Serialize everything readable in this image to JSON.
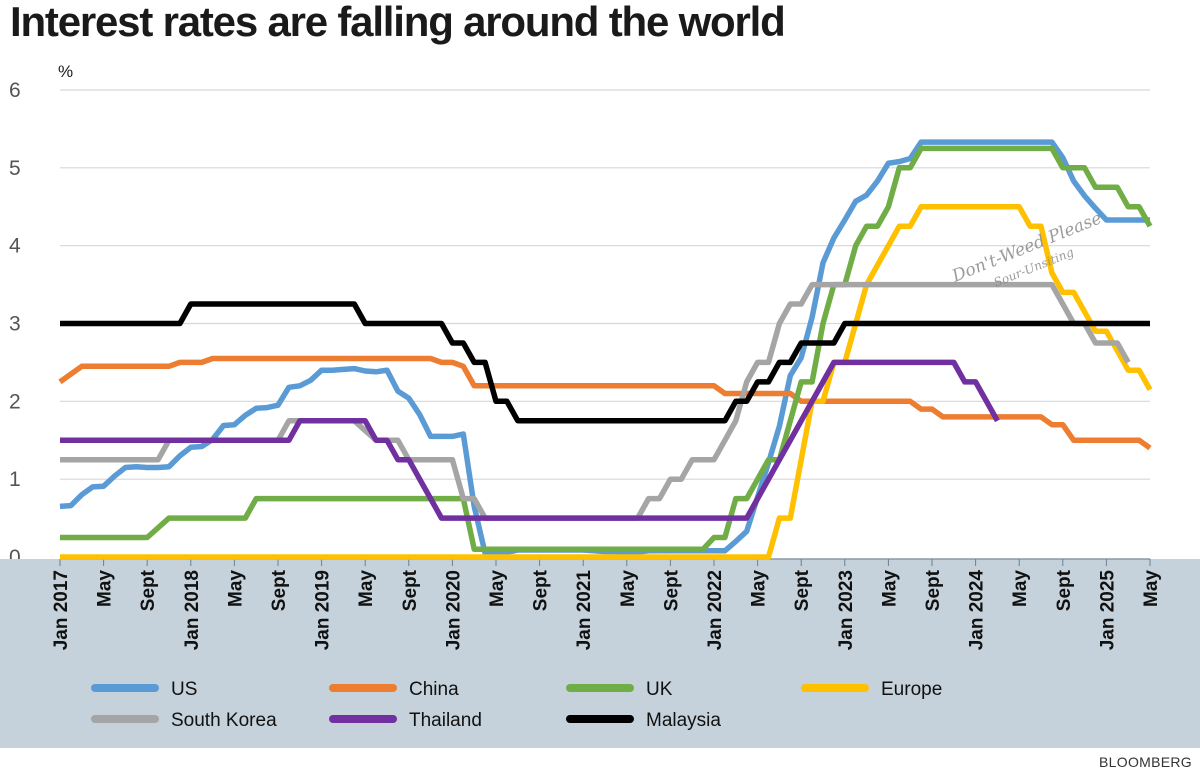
{
  "chart_data": {
    "type": "line",
    "title": "Interest rates are falling around the world",
    "ylabel": "%",
    "ylim": [
      0,
      6
    ],
    "yticks": [
      "0",
      "1",
      "2",
      "3",
      "4",
      "5",
      "6"
    ],
    "grid": true,
    "x_start": "Jan 2017",
    "x_months_span": 100,
    "xticks": [
      {
        "month": 0,
        "label": "Jan 2017"
      },
      {
        "month": 4,
        "label": "May"
      },
      {
        "month": 8,
        "label": "Sept"
      },
      {
        "month": 12,
        "label": "Jan 2018"
      },
      {
        "month": 16,
        "label": "May"
      },
      {
        "month": 20,
        "label": "Sept"
      },
      {
        "month": 24,
        "label": "Jan 2019"
      },
      {
        "month": 28,
        "label": "May"
      },
      {
        "month": 32,
        "label": "Sept"
      },
      {
        "month": 36,
        "label": "Jan 2020"
      },
      {
        "month": 40,
        "label": "May"
      },
      {
        "month": 44,
        "label": "Sept"
      },
      {
        "month": 48,
        "label": "Jan 2021"
      },
      {
        "month": 52,
        "label": "May"
      },
      {
        "month": 56,
        "label": "Sept"
      },
      {
        "month": 60,
        "label": "Jan 2022"
      },
      {
        "month": 64,
        "label": "May"
      },
      {
        "month": 68,
        "label": "Sept"
      },
      {
        "month": 72,
        "label": "Jan 2023"
      },
      {
        "month": 76,
        "label": "May"
      },
      {
        "month": 80,
        "label": "Sept"
      },
      {
        "month": 84,
        "label": "Jan 2024"
      },
      {
        "month": 88,
        "label": "May"
      },
      {
        "month": 92,
        "label": "Sept"
      },
      {
        "month": 96,
        "label": "Jan 2025"
      },
      {
        "month": 100,
        "label": "May"
      }
    ],
    "legend_position": "bottom",
    "series": [
      {
        "name": "US",
        "color": "#5B9BD5",
        "points": [
          [
            0,
            0.65
          ],
          [
            1,
            0.66
          ],
          [
            2,
            0.8
          ],
          [
            3,
            0.9
          ],
          [
            4,
            0.91
          ],
          [
            5,
            1.04
          ],
          [
            6,
            1.15
          ],
          [
            7,
            1.16
          ],
          [
            8,
            1.15
          ],
          [
            9,
            1.15
          ],
          [
            10,
            1.16
          ],
          [
            11,
            1.3
          ],
          [
            12,
            1.41
          ],
          [
            13,
            1.42
          ],
          [
            14,
            1.51
          ],
          [
            15,
            1.69
          ],
          [
            16,
            1.7
          ],
          [
            17,
            1.82
          ],
          [
            18,
            1.91
          ],
          [
            19,
            1.92
          ],
          [
            20,
            1.95
          ],
          [
            21,
            2.18
          ],
          [
            22,
            2.2
          ],
          [
            23,
            2.27
          ],
          [
            24,
            2.4
          ],
          [
            25,
            2.4
          ],
          [
            26,
            2.41
          ],
          [
            27,
            2.42
          ],
          [
            28,
            2.39
          ],
          [
            29,
            2.38
          ],
          [
            30,
            2.4
          ],
          [
            31,
            2.13
          ],
          [
            32,
            2.04
          ],
          [
            33,
            1.83
          ],
          [
            34,
            1.55
          ],
          [
            35,
            1.55
          ],
          [
            36,
            1.55
          ],
          [
            37,
            1.58
          ],
          [
            38,
            0.65
          ],
          [
            39,
            0.05
          ],
          [
            40,
            0.05
          ],
          [
            41,
            0.06
          ],
          [
            42,
            0.09
          ],
          [
            43,
            0.09
          ],
          [
            44,
            0.09
          ],
          [
            45,
            0.09
          ],
          [
            46,
            0.09
          ],
          [
            47,
            0.09
          ],
          [
            48,
            0.09
          ],
          [
            49,
            0.08
          ],
          [
            50,
            0.07
          ],
          [
            51,
            0.07
          ],
          [
            52,
            0.06
          ],
          [
            53,
            0.06
          ],
          [
            54,
            0.08
          ],
          [
            55,
            0.08
          ],
          [
            56,
            0.08
          ],
          [
            57,
            0.08
          ],
          [
            58,
            0.08
          ],
          [
            59,
            0.08
          ],
          [
            60,
            0.08
          ],
          [
            61,
            0.08
          ],
          [
            62,
            0.2
          ],
          [
            63,
            0.33
          ],
          [
            64,
            0.77
          ],
          [
            65,
            1.21
          ],
          [
            66,
            1.68
          ],
          [
            67,
            2.33
          ],
          [
            68,
            2.56
          ],
          [
            69,
            3.08
          ],
          [
            70,
            3.78
          ],
          [
            71,
            4.1
          ],
          [
            72,
            4.33
          ],
          [
            73,
            4.57
          ],
          [
            74,
            4.65
          ],
          [
            75,
            4.83
          ],
          [
            76,
            5.06
          ],
          [
            77,
            5.08
          ],
          [
            78,
            5.12
          ],
          [
            79,
            5.33
          ],
          [
            80,
            5.33
          ],
          [
            81,
            5.33
          ],
          [
            82,
            5.33
          ],
          [
            83,
            5.33
          ],
          [
            84,
            5.33
          ],
          [
            85,
            5.33
          ],
          [
            86,
            5.33
          ],
          [
            87,
            5.33
          ],
          [
            88,
            5.33
          ],
          [
            89,
            5.33
          ],
          [
            90,
            5.33
          ],
          [
            91,
            5.33
          ],
          [
            92,
            5.13
          ],
          [
            93,
            4.83
          ],
          [
            94,
            4.64
          ],
          [
            95,
            4.48
          ],
          [
            96,
            4.33
          ],
          [
            97,
            4.33
          ],
          [
            98,
            4.33
          ],
          [
            99,
            4.33
          ],
          [
            100,
            4.33
          ]
        ]
      },
      {
        "name": "China",
        "color": "#ED7D31",
        "points": [
          [
            0,
            2.25
          ],
          [
            2,
            2.45
          ],
          [
            9,
            2.45
          ],
          [
            10,
            2.45
          ],
          [
            11,
            2.5
          ],
          [
            13,
            2.5
          ],
          [
            14,
            2.55
          ],
          [
            34,
            2.55
          ],
          [
            35,
            2.5
          ],
          [
            36,
            2.5
          ],
          [
            37,
            2.45
          ],
          [
            38,
            2.2
          ],
          [
            59,
            2.2
          ],
          [
            60,
            2.2
          ],
          [
            61,
            2.1
          ],
          [
            67,
            2.1
          ],
          [
            68,
            2.0
          ],
          [
            78,
            2.0
          ],
          [
            79,
            1.9
          ],
          [
            80,
            1.9
          ],
          [
            81,
            1.8
          ],
          [
            89,
            1.8
          ],
          [
            90,
            1.8
          ],
          [
            91,
            1.7
          ],
          [
            92,
            1.7
          ],
          [
            93,
            1.5
          ],
          [
            99,
            1.5
          ],
          [
            100,
            1.4
          ]
        ]
      },
      {
        "name": "UK",
        "color": "#70AD47",
        "points": [
          [
            0,
            0.25
          ],
          [
            8,
            0.25
          ],
          [
            10,
            0.5
          ],
          [
            17,
            0.5
          ],
          [
            18,
            0.75
          ],
          [
            37,
            0.75
          ],
          [
            38,
            0.1
          ],
          [
            58,
            0.1
          ],
          [
            59,
            0.1
          ],
          [
            60,
            0.25
          ],
          [
            61,
            0.25
          ],
          [
            62,
            0.75
          ],
          [
            63,
            0.75
          ],
          [
            64,
            1.0
          ],
          [
            65,
            1.25
          ],
          [
            66,
            1.25
          ],
          [
            67,
            1.75
          ],
          [
            68,
            2.25
          ],
          [
            69,
            2.25
          ],
          [
            70,
            3.0
          ],
          [
            71,
            3.5
          ],
          [
            72,
            3.5
          ],
          [
            73,
            4.0
          ],
          [
            74,
            4.25
          ],
          [
            75,
            4.25
          ],
          [
            76,
            4.5
          ],
          [
            77,
            5.0
          ],
          [
            78,
            5.0
          ],
          [
            79,
            5.25
          ],
          [
            91,
            5.25
          ],
          [
            92,
            5.0
          ],
          [
            93,
            5.0
          ],
          [
            94,
            5.0
          ],
          [
            95,
            4.75
          ],
          [
            96,
            4.75
          ],
          [
            97,
            4.75
          ],
          [
            98,
            4.5
          ],
          [
            99,
            4.5
          ],
          [
            100,
            4.25
          ]
        ]
      },
      {
        "name": "Europe",
        "color": "#FFC000",
        "points": [
          [
            0,
            0
          ],
          [
            65,
            0
          ],
          [
            66,
            0.5
          ],
          [
            67,
            0.5
          ],
          [
            68,
            1.25
          ],
          [
            69,
            2.0
          ],
          [
            70,
            2.0
          ],
          [
            71,
            2.5
          ],
          [
            72,
            2.5
          ],
          [
            73,
            3.0
          ],
          [
            74,
            3.5
          ],
          [
            75,
            3.75
          ],
          [
            76,
            4.0
          ],
          [
            77,
            4.25
          ],
          [
            78,
            4.25
          ],
          [
            79,
            4.5
          ],
          [
            88,
            4.5
          ],
          [
            89,
            4.25
          ],
          [
            90,
            4.25
          ],
          [
            91,
            3.65
          ],
          [
            92,
            3.4
          ],
          [
            93,
            3.4
          ],
          [
            94,
            3.15
          ],
          [
            95,
            2.9
          ],
          [
            96,
            2.9
          ],
          [
            97,
            2.65
          ],
          [
            98,
            2.4
          ],
          [
            99,
            2.4
          ],
          [
            100,
            2.15
          ]
        ]
      },
      {
        "name": "South Korea",
        "color": "#A5A5A5",
        "points": [
          [
            0,
            1.25
          ],
          [
            9,
            1.25
          ],
          [
            10,
            1.5
          ],
          [
            20,
            1.5
          ],
          [
            21,
            1.75
          ],
          [
            27,
            1.75
          ],
          [
            29,
            1.5
          ],
          [
            31,
            1.5
          ],
          [
            32,
            1.25
          ],
          [
            36,
            1.25
          ],
          [
            37,
            0.75
          ],
          [
            38,
            0.75
          ],
          [
            39,
            0.5
          ],
          [
            53,
            0.5
          ],
          [
            54,
            0.75
          ],
          [
            55,
            0.75
          ],
          [
            56,
            1.0
          ],
          [
            57,
            1.0
          ],
          [
            58,
            1.25
          ],
          [
            59,
            1.25
          ],
          [
            60,
            1.25
          ],
          [
            61,
            1.5
          ],
          [
            62,
            1.75
          ],
          [
            63,
            2.25
          ],
          [
            64,
            2.5
          ],
          [
            65,
            2.5
          ],
          [
            66,
            3.0
          ],
          [
            67,
            3.25
          ],
          [
            68,
            3.25
          ],
          [
            69,
            3.5
          ],
          [
            91,
            3.5
          ],
          [
            92,
            3.25
          ],
          [
            93,
            3.0
          ],
          [
            94,
            3.0
          ],
          [
            95,
            2.75
          ],
          [
            96,
            2.75
          ],
          [
            97,
            2.75
          ],
          [
            98,
            2.5
          ]
        ]
      },
      {
        "name": "Thailand",
        "color": "#7030A0",
        "points": [
          [
            0,
            1.5
          ],
          [
            21,
            1.5
          ],
          [
            22,
            1.75
          ],
          [
            28,
            1.75
          ],
          [
            29,
            1.5
          ],
          [
            30,
            1.5
          ],
          [
            31,
            1.25
          ],
          [
            32,
            1.25
          ],
          [
            33,
            1.0
          ],
          [
            34,
            0.75
          ],
          [
            35,
            0.5
          ],
          [
            63,
            0.5
          ],
          [
            64,
            0.75
          ],
          [
            65,
            1.0
          ],
          [
            66,
            1.25
          ],
          [
            67,
            1.5
          ],
          [
            68,
            1.75
          ],
          [
            69,
            2.0
          ],
          [
            70,
            2.25
          ],
          [
            71,
            2.5
          ],
          [
            82,
            2.5
          ],
          [
            83,
            2.25
          ],
          [
            84,
            2.25
          ],
          [
            85,
            2.0
          ],
          [
            86,
            1.75
          ]
        ]
      },
      {
        "name": "Malaysia",
        "color": "#000000",
        "points": [
          [
            0,
            3.0
          ],
          [
            11,
            3.0
          ],
          [
            12,
            3.25
          ],
          [
            27,
            3.25
          ],
          [
            28,
            3.0
          ],
          [
            35,
            3.0
          ],
          [
            36,
            2.75
          ],
          [
            37,
            2.75
          ],
          [
            38,
            2.5
          ],
          [
            39,
            2.5
          ],
          [
            40,
            2.0
          ],
          [
            41,
            2.0
          ],
          [
            42,
            1.75
          ],
          [
            60,
            1.75
          ],
          [
            61,
            1.75
          ],
          [
            62,
            2.0
          ],
          [
            63,
            2.0
          ],
          [
            64,
            2.25
          ],
          [
            65,
            2.25
          ],
          [
            66,
            2.5
          ],
          [
            67,
            2.5
          ],
          [
            68,
            2.75
          ],
          [
            71,
            2.75
          ],
          [
            72,
            3.0
          ],
          [
            100,
            3.0
          ]
        ]
      }
    ]
  },
  "source": "BLOOMBERG",
  "watermark": {
    "line1": "Don't-Weed Please",
    "line2": "Sour-Unsiting"
  }
}
